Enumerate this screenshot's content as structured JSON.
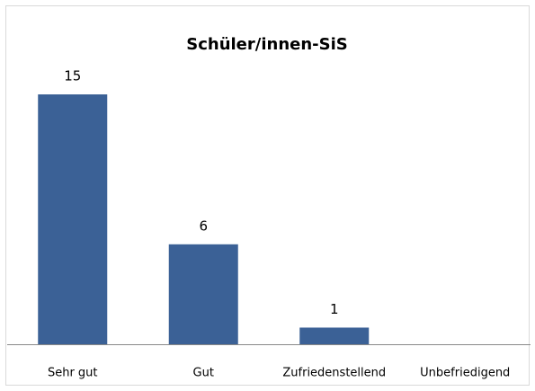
{
  "chart_data": {
    "type": "bar",
    "title": "Schüler/innen-SiS",
    "categories": [
      "Sehr gut",
      "Gut",
      "Zufriedenstellend",
      "Unbefriedigend"
    ],
    "values": [
      15,
      6,
      1,
      0
    ],
    "value_labels": [
      "15",
      "6",
      "1",
      null
    ],
    "color": "#3b6196"
  }
}
